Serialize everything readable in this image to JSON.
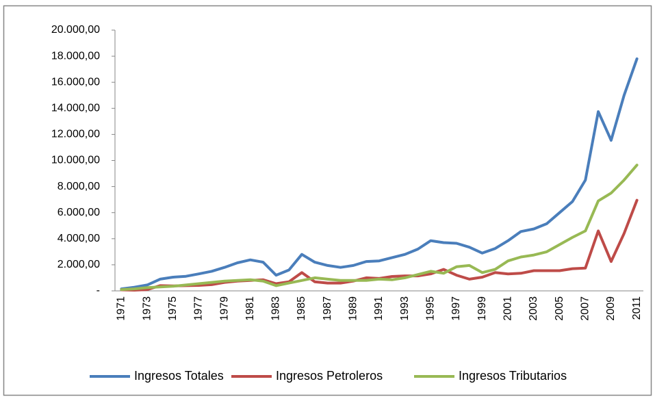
{
  "chart_data": {
    "type": "line",
    "categories": [
      "1971",
      null,
      "1973",
      null,
      "1975",
      null,
      "1977",
      null,
      "1979",
      null,
      "1981",
      null,
      "1983",
      null,
      "1985",
      null,
      "1987",
      null,
      "1989",
      null,
      "1991",
      null,
      "1993",
      null,
      "1995",
      null,
      "1997",
      null,
      "1999",
      null,
      "2001",
      null,
      "2003",
      null,
      "2005",
      null,
      "2007",
      null,
      "2009",
      null,
      "2011"
    ],
    "series": [
      {
        "name": "Ingresos Totales",
        "color": "#4a7ebb",
        "values": [
          150,
          280,
          450,
          900,
          1050,
          1120,
          1300,
          1500,
          1800,
          2150,
          2380,
          2200,
          1200,
          1600,
          2800,
          2200,
          1950,
          1800,
          1950,
          2250,
          2300,
          2550,
          2800,
          3200,
          3850,
          3700,
          3650,
          3350,
          2900,
          3250,
          3850,
          4550,
          4750,
          5150,
          6000,
          6850,
          8500,
          13750,
          11550,
          15000,
          17800
        ]
      },
      {
        "name": "Ingresos Petroleros",
        "color": "#be4b48",
        "values": [
          80,
          50,
          100,
          400,
          380,
          400,
          420,
          480,
          650,
          750,
          800,
          850,
          550,
          700,
          1400,
          700,
          600,
          600,
          750,
          1000,
          950,
          1100,
          1150,
          1150,
          1300,
          1650,
          1200,
          900,
          1050,
          1400,
          1300,
          1350,
          1550,
          1550,
          1550,
          1700,
          1750,
          4600,
          2250,
          4400,
          6950
        ]
      },
      {
        "name": "Ingresos Tributarios",
        "color": "#98b954",
        "values": [
          100,
          150,
          250,
          300,
          350,
          450,
          550,
          650,
          750,
          800,
          850,
          750,
          400,
          600,
          800,
          1000,
          900,
          800,
          800,
          800,
          900,
          850,
          1000,
          1250,
          1500,
          1350,
          1850,
          1950,
          1400,
          1650,
          2300,
          2600,
          2750,
          3000,
          3550,
          4100,
          4600,
          6900,
          7500,
          8500,
          9650
        ]
      }
    ],
    "ylim": [
      0,
      20000
    ],
    "yticks": [
      {
        "value": 0,
        "label": "-"
      },
      {
        "value": 2000,
        "label": "2.000,00"
      },
      {
        "value": 4000,
        "label": "4.000,00"
      },
      {
        "value": 6000,
        "label": "6.000,00"
      },
      {
        "value": 8000,
        "label": "8.000,00"
      },
      {
        "value": 10000,
        "label": "10.000,00"
      },
      {
        "value": 12000,
        "label": "12.000,00"
      },
      {
        "value": 14000,
        "label": "14.000,00"
      },
      {
        "value": 16000,
        "label": "16.000,00"
      },
      {
        "value": 18000,
        "label": "18.000,00"
      },
      {
        "value": 20000,
        "label": "20.000,00"
      }
    ],
    "legend": "bottom"
  }
}
